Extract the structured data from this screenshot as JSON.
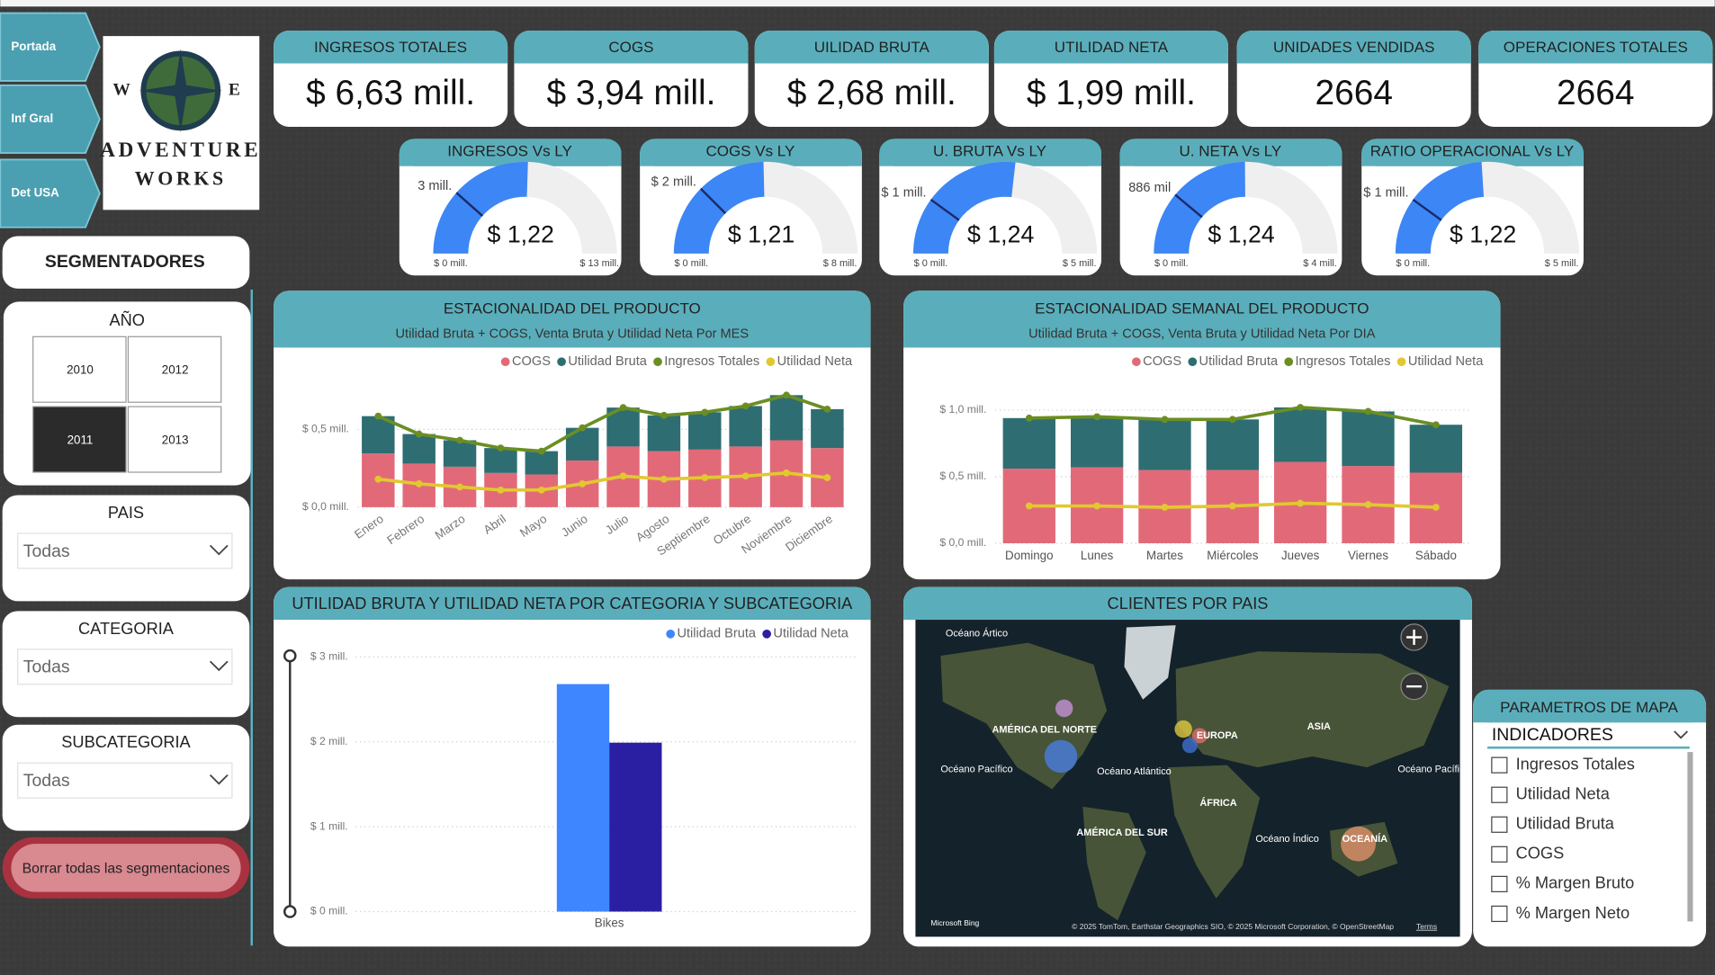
{
  "nav": [
    "Portada",
    "Inf Gral",
    "Det USA"
  ],
  "logo": {
    "compass": [
      "W",
      "E"
    ],
    "name": [
      "ADVENTURE",
      "WORKS"
    ]
  },
  "kpis": [
    {
      "label": "INGRESOS TOTALES",
      "value": "$ 6,63 mill."
    },
    {
      "label": "COGS",
      "value": "$ 3,94 mill."
    },
    {
      "label": "UILIDAD BRUTA",
      "value": "$ 2,68 mill."
    },
    {
      "label": "UTILIDAD NETA",
      "value": "$ 1,99 mill."
    },
    {
      "label": "UNIDADES VENDIDAS",
      "value": 2664
    },
    {
      "label": "OPERACIONES TOTALES",
      "value": 2664
    }
  ],
  "slicers": {
    "title": "SEGMENTADORES",
    "year": {
      "label": "AÑO",
      "options": [
        "2010",
        "2012",
        "2011",
        "2013"
      ],
      "selected": "2011"
    },
    "dropdowns": [
      {
        "label": "PAIS",
        "value": "Todas"
      },
      {
        "label": "CATEGORIA",
        "value": "Todas"
      },
      {
        "label": "SUBCATEGORIA",
        "value": "Todas"
      }
    ],
    "clear_button": "Borrar todas las segmentaciones"
  },
  "chart_data": [
    {
      "type": "gauge",
      "title": "INGRESOS Vs LY",
      "callout": "$ 1,22",
      "values": [
        6.63
      ],
      "color": "#3d86f5",
      "ylim": [
        0,
        13
      ],
      "yticks": [
        {
          "value": 0,
          "label": "$ 0 mill."
        },
        {
          "value": 13,
          "label": "$ 13 mill."
        }
      ],
      "target": {
        "value": 3,
        "label": "3 mill."
      }
    },
    {
      "type": "gauge",
      "title": "COGS Vs LY",
      "callout": "$ 1,21",
      "values": [
        3.94
      ],
      "color": "#3d86f5",
      "ylim": [
        0,
        8
      ],
      "yticks": [
        {
          "value": 0,
          "label": "$ 0 mill."
        },
        {
          "value": 8,
          "label": "$ 8 mill."
        }
      ],
      "target": {
        "value": 2,
        "label": "$ 2 mill."
      }
    },
    {
      "type": "gauge",
      "title": "U. BRUTA Vs LY",
      "callout": "$ 1,24",
      "values": [
        2.68
      ],
      "color": "#3d86f5",
      "ylim": [
        0,
        5
      ],
      "yticks": [
        {
          "value": 0,
          "label": "$ 0 mill."
        },
        {
          "value": 5,
          "label": "$ 5 mill."
        }
      ],
      "target": {
        "value": 1,
        "label": "$ 1 mill."
      }
    },
    {
      "type": "gauge",
      "title": "U. NETA Vs LY",
      "callout": "$ 1,24",
      "values": [
        1.99
      ],
      "color": "#3d86f5",
      "ylim": [
        0,
        4
      ],
      "yticks": [
        {
          "value": 0,
          "label": "$ 0 mill."
        },
        {
          "value": 4,
          "label": "$ 4 mill."
        }
      ],
      "target": {
        "value": 0.886,
        "label": "886 mil"
      }
    },
    {
      "type": "gauge",
      "title": "RATIO OPERACIONAL Vs LY",
      "callout": "$ 1,22",
      "values": [
        2.4
      ],
      "color": "#3d86f5",
      "ylim": [
        0,
        5
      ],
      "yticks": [
        {
          "value": 0,
          "label": "$ 0 mill."
        },
        {
          "value": 5,
          "label": "$ 5 mill."
        }
      ],
      "target": {
        "value": 1,
        "label": "$ 1 mill."
      }
    },
    {
      "type": "combo",
      "title": "ESTACIONALIDAD DEL PRODUCTO",
      "subtitle": "Utilidad Bruta + COGS, Venta Bruta y Utilidad Neta Por MES",
      "categories": [
        "Enero",
        "Febrero",
        "Marzo",
        "Abril",
        "Mayo",
        "Junio",
        "Julio",
        "Agosto",
        "Septiembre",
        "Octubre",
        "Noviembre",
        "Diciembre"
      ],
      "stacked": true,
      "grid": true,
      "series": [
        {
          "name": "COGS",
          "type": "bar",
          "color": "#e26a78",
          "values": [
            0.345,
            0.28,
            0.26,
            0.22,
            0.21,
            0.3,
            0.39,
            0.36,
            0.37,
            0.39,
            0.43,
            0.38
          ]
        },
        {
          "name": "Utilidad Bruta",
          "type": "bar",
          "color": "#2e6e72",
          "values": [
            0.24,
            0.19,
            0.17,
            0.16,
            0.15,
            0.21,
            0.25,
            0.23,
            0.24,
            0.26,
            0.29,
            0.25
          ]
        },
        {
          "name": "Ingresos Totales",
          "type": "line",
          "color": "#6b8e23",
          "values": [
            0.585,
            0.47,
            0.43,
            0.38,
            0.36,
            0.51,
            0.64,
            0.59,
            0.61,
            0.65,
            0.72,
            0.63
          ]
        },
        {
          "name": "Utilidad Neta",
          "type": "line",
          "color": "#e2c830",
          "values": [
            0.18,
            0.15,
            0.13,
            0.11,
            0.11,
            0.15,
            0.2,
            0.18,
            0.19,
            0.2,
            0.22,
            0.19
          ]
        }
      ],
      "ylim": [
        0,
        0.85
      ],
      "yticks": [
        {
          "value": 0,
          "label": "$ 0,0 mill."
        },
        {
          "value": 0.5,
          "label": "$ 0,5 mill."
        }
      ]
    },
    {
      "type": "combo",
      "title": "ESTACIONALIDAD SEMANAL DEL PRODUCTO",
      "subtitle": "Utilidad Bruta + COGS, Venta Bruta y Utilidad Neta Por DIA",
      "categories": [
        "Domingo",
        "Lunes",
        "Martes",
        "Miércoles",
        "Jueves",
        "Viernes",
        "Sábado"
      ],
      "stacked": true,
      "grid": true,
      "series": [
        {
          "name": "COGS",
          "type": "bar",
          "color": "#e26a78",
          "values": [
            0.56,
            0.57,
            0.55,
            0.55,
            0.61,
            0.58,
            0.53
          ]
        },
        {
          "name": "Utilidad Bruta",
          "type": "bar",
          "color": "#2e6e72",
          "values": [
            0.38,
            0.38,
            0.38,
            0.38,
            0.41,
            0.41,
            0.36
          ]
        },
        {
          "name": "Ingresos Totales",
          "type": "line",
          "color": "#6b8e23",
          "values": [
            0.94,
            0.95,
            0.93,
            0.93,
            1.02,
            0.99,
            0.89
          ]
        },
        {
          "name": "Utilidad Neta",
          "type": "line",
          "color": "#e2c830",
          "values": [
            0.28,
            0.28,
            0.27,
            0.28,
            0.3,
            0.29,
            0.27
          ]
        }
      ],
      "ylim": [
        0,
        1.1
      ],
      "yticks": [
        {
          "value": 0,
          "label": "$ 0,0 mill."
        },
        {
          "value": 0.5,
          "label": "$ 0,5 mill."
        },
        {
          "value": 1,
          "label": "$ 1,0 mill."
        }
      ]
    },
    {
      "type": "bar",
      "title": "UTILIDAD BRUTA Y UTILIDAD NETA POR CATEGORIA Y SUBCATEGORIA",
      "categories": [
        "Bikes"
      ],
      "grid": true,
      "series": [
        {
          "name": "Utilidad Bruta",
          "color": "#3d86ff",
          "values": [
            2.68
          ]
        },
        {
          "name": "Utilidad Neta",
          "color": "#2a1fa3",
          "values": [
            1.99
          ]
        }
      ],
      "ylim": [
        0,
        3
      ],
      "yticks": [
        {
          "value": 0,
          "label": "$ 0 mill."
        },
        {
          "value": 1,
          "label": "$ 1 mill."
        },
        {
          "value": 2,
          "label": "$ 2 mill."
        },
        {
          "value": 3,
          "label": "$ 3 mill."
        }
      ]
    }
  ],
  "map": {
    "title": "CLIENTES POR PAIS",
    "labels": [
      "Océano Ártico",
      "AMÉRICA DEL NORTE",
      "EUROPA",
      "ASIA",
      "Océano Pacífico",
      "Océano Atlántico",
      "ÁFRICA",
      "AMÉRICA DEL SUR",
      "Océano Índico",
      "OCEANÍA",
      "Océano Pacífico"
    ],
    "attribution": "Microsoft Bing",
    "copyright": "© 2025 TomTom, Earthstar Geographics SIO, © 2025 Microsoft Corporation, © OpenStreetMap",
    "terms": "Terms"
  },
  "map_parameters": {
    "title": "PARAMETROS DE MAPA",
    "dropdown": "INDICADORES",
    "options": [
      "Ingresos Totales",
      "Utilidad Neta",
      "Utilidad Bruta",
      "COGS",
      "% Margen Bruto",
      "% Margen Neto"
    ]
  }
}
